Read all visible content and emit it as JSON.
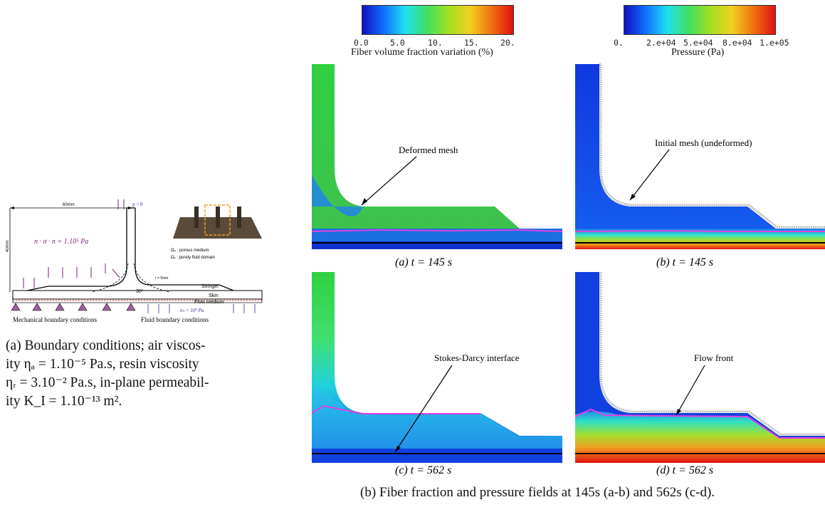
{
  "schematic": {
    "dim_width": "60mm",
    "dim_height": "40mm",
    "top_condition": "p = 0",
    "normal_stress": "n · σ · n = 1.10⁵ Pa",
    "domain_porous": "Ωₚ : porous medium",
    "domain_fluid": "Ωₛ : purely fluid domain",
    "radius": "r = 5mm",
    "angle": "30°",
    "stringer": "Stringer",
    "skin": "Skin",
    "flow_medium": "Flow medium",
    "inlet_condition": "σₙ = 10⁵ Pa",
    "label_mechanical": "Mechanical boundary conditions",
    "label_fluid": "Fluid boundary conditions"
  },
  "caption_left": {
    "a": "(a) Boundary conditions; air viscos-",
    "b": "ity ηₐ = 1.10⁻⁵ Pa.s, resin viscosity",
    "c": "ηᵣ = 3.10⁻² Pa.s, in-plane permeabil-",
    "d": "ity K_I = 1.10⁻¹³ m²."
  },
  "colorbar_fiber": {
    "ticks": [
      "0.0",
      "5.0",
      "10.",
      "15.",
      "20."
    ],
    "label": "Fiber volume fraction variation (%)"
  },
  "colorbar_pressure": {
    "ticks": [
      "0.",
      "2.e+04",
      "5.e+04",
      "8.e+04",
      "1.e+05"
    ],
    "label": "Pressure (Pa)"
  },
  "panels": {
    "a": {
      "caption": "(a) t = 145 s",
      "annotation": "Deformed mesh"
    },
    "b": {
      "caption": "(b) t = 145 s",
      "annotation": "Initial mesh (undeformed)"
    },
    "c": {
      "caption": "(c) t = 562 s",
      "annotation": "Stokes-Darcy interface"
    },
    "d": {
      "caption": "(d) t = 562 s",
      "annotation": "Flow front"
    }
  },
  "caption_bottom": "(b) Fiber fraction and pressure fields at 145s (a-b) and 562s (c-d).",
  "colors": {
    "flow_front": "#e040e0",
    "interface": "#000000"
  }
}
